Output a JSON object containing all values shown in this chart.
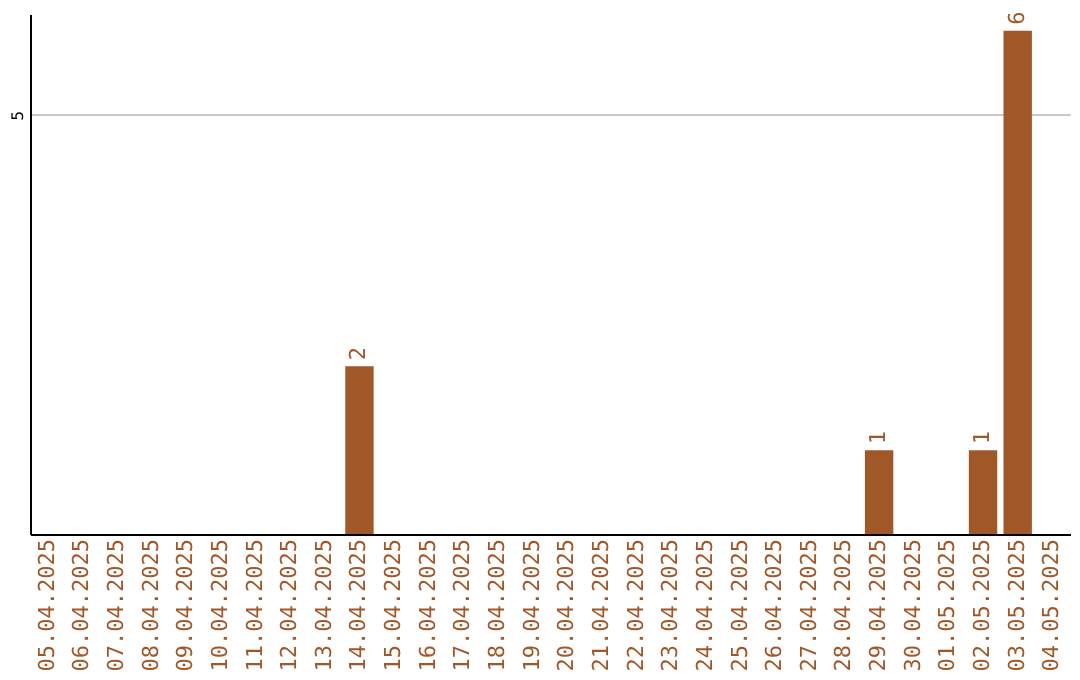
{
  "chart_data": {
    "type": "bar",
    "categories": [
      "05.04.2025",
      "06.04.2025",
      "07.04.2025",
      "08.04.2025",
      "09.04.2025",
      "10.04.2025",
      "11.04.2025",
      "12.04.2025",
      "13.04.2025",
      "14.04.2025",
      "15.04.2025",
      "16.04.2025",
      "17.04.2025",
      "18.04.2025",
      "19.04.2025",
      "20.04.2025",
      "21.04.2025",
      "22.04.2025",
      "23.04.2025",
      "24.04.2025",
      "25.04.2025",
      "26.04.2025",
      "27.04.2025",
      "28.04.2025",
      "29.04.2025",
      "30.04.2025",
      "01.05.2025",
      "02.05.2025",
      "03.05.2025",
      "04.05.2025"
    ],
    "values": [
      0,
      0,
      0,
      0,
      0,
      0,
      0,
      0,
      0,
      2,
      0,
      0,
      0,
      0,
      0,
      0,
      0,
      0,
      0,
      0,
      0,
      0,
      0,
      0,
      1,
      0,
      0,
      1,
      6,
      0
    ],
    "value_labels": [
      null,
      null,
      null,
      null,
      null,
      null,
      null,
      null,
      null,
      "2",
      null,
      null,
      null,
      null,
      null,
      null,
      null,
      null,
      null,
      null,
      null,
      null,
      null,
      null,
      "1",
      null,
      null,
      "1",
      "6",
      null
    ],
    "color": "#a15829",
    "ylim": [
      0,
      6.2
    ],
    "yticks": [
      5
    ],
    "grid": "y"
  }
}
